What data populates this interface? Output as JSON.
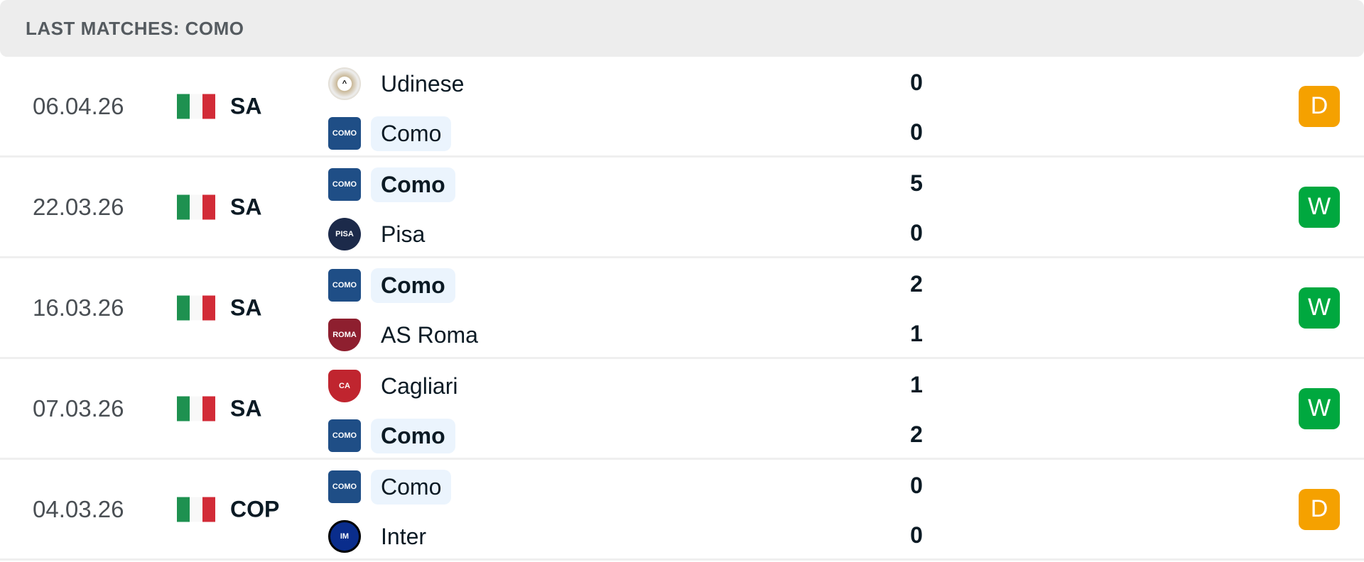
{
  "header": {
    "title": "LAST MATCHES: COMO"
  },
  "colors": {
    "draw": "#f5a100",
    "win": "#00a83f",
    "highlight": "#ebf4fd",
    "flag_green": "#1e9150",
    "flag_white": "#f8f8f8",
    "flag_red": "#d22b37"
  },
  "matches": [
    {
      "date": "06.04.26",
      "flag": "italy-flag",
      "league": "SA",
      "home": {
        "name": "Udinese",
        "logo": "udinese-logo",
        "highlight": false,
        "bold": false
      },
      "away": {
        "name": "Como",
        "logo": "como-logo",
        "highlight": true,
        "bold": false
      },
      "home_score": "0",
      "away_score": "0",
      "result": "D"
    },
    {
      "date": "22.03.26",
      "flag": "italy-flag",
      "league": "SA",
      "home": {
        "name": "Como",
        "logo": "como-logo",
        "highlight": true,
        "bold": true
      },
      "away": {
        "name": "Pisa",
        "logo": "pisa-logo",
        "highlight": false,
        "bold": false
      },
      "home_score": "5",
      "away_score": "0",
      "result": "W"
    },
    {
      "date": "16.03.26",
      "flag": "italy-flag",
      "league": "SA",
      "home": {
        "name": "Como",
        "logo": "como-logo",
        "highlight": true,
        "bold": true
      },
      "away": {
        "name": "AS Roma",
        "logo": "roma-logo",
        "highlight": false,
        "bold": false
      },
      "home_score": "2",
      "away_score": "1",
      "result": "W"
    },
    {
      "date": "07.03.26",
      "flag": "italy-flag",
      "league": "SA",
      "home": {
        "name": "Cagliari",
        "logo": "cagliari-logo",
        "highlight": false,
        "bold": false
      },
      "away": {
        "name": "Como",
        "logo": "como-logo",
        "highlight": true,
        "bold": true
      },
      "home_score": "1",
      "away_score": "2",
      "result": "W"
    },
    {
      "date": "04.03.26",
      "flag": "italy-flag",
      "league": "COP",
      "home": {
        "name": "Como",
        "logo": "como-logo",
        "highlight": true,
        "bold": false
      },
      "away": {
        "name": "Inter",
        "logo": "inter-logo",
        "highlight": false,
        "bold": false
      },
      "home_score": "0",
      "away_score": "0",
      "result": "D"
    }
  ]
}
